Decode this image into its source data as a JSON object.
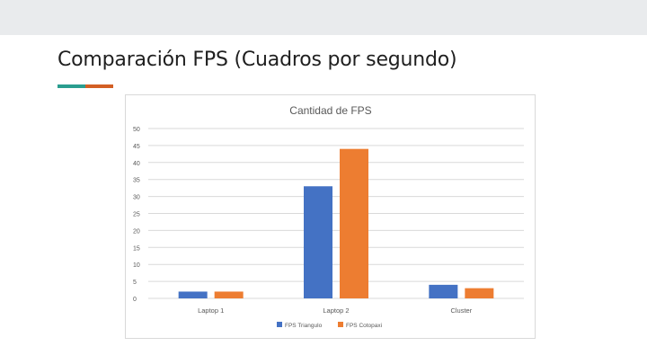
{
  "slide": {
    "title": "Comparación FPS (Cuadros por segundo)",
    "accent_colors": [
      "#2a9d8f",
      "#d35f24"
    ],
    "band_color": "#e9ebed"
  },
  "chart_data": {
    "type": "bar",
    "title": "Cantidad de FPS",
    "xlabel": "",
    "ylabel": "",
    "categories": [
      "Laptop 1",
      "Laptop 2",
      "Cluster"
    ],
    "series": [
      {
        "name": "FPS Triangulo",
        "color": "#4472c4",
        "values": [
          2,
          33,
          4
        ]
      },
      {
        "name": "FPS Cotopaxi",
        "color": "#ed7d31",
        "values": [
          2,
          44,
          3
        ]
      }
    ],
    "ylim": [
      0,
      50
    ],
    "yticks": [
      0,
      5,
      10,
      15,
      20,
      25,
      30,
      35,
      40,
      45,
      50
    ],
    "grid": true,
    "legend_position": "bottom"
  }
}
